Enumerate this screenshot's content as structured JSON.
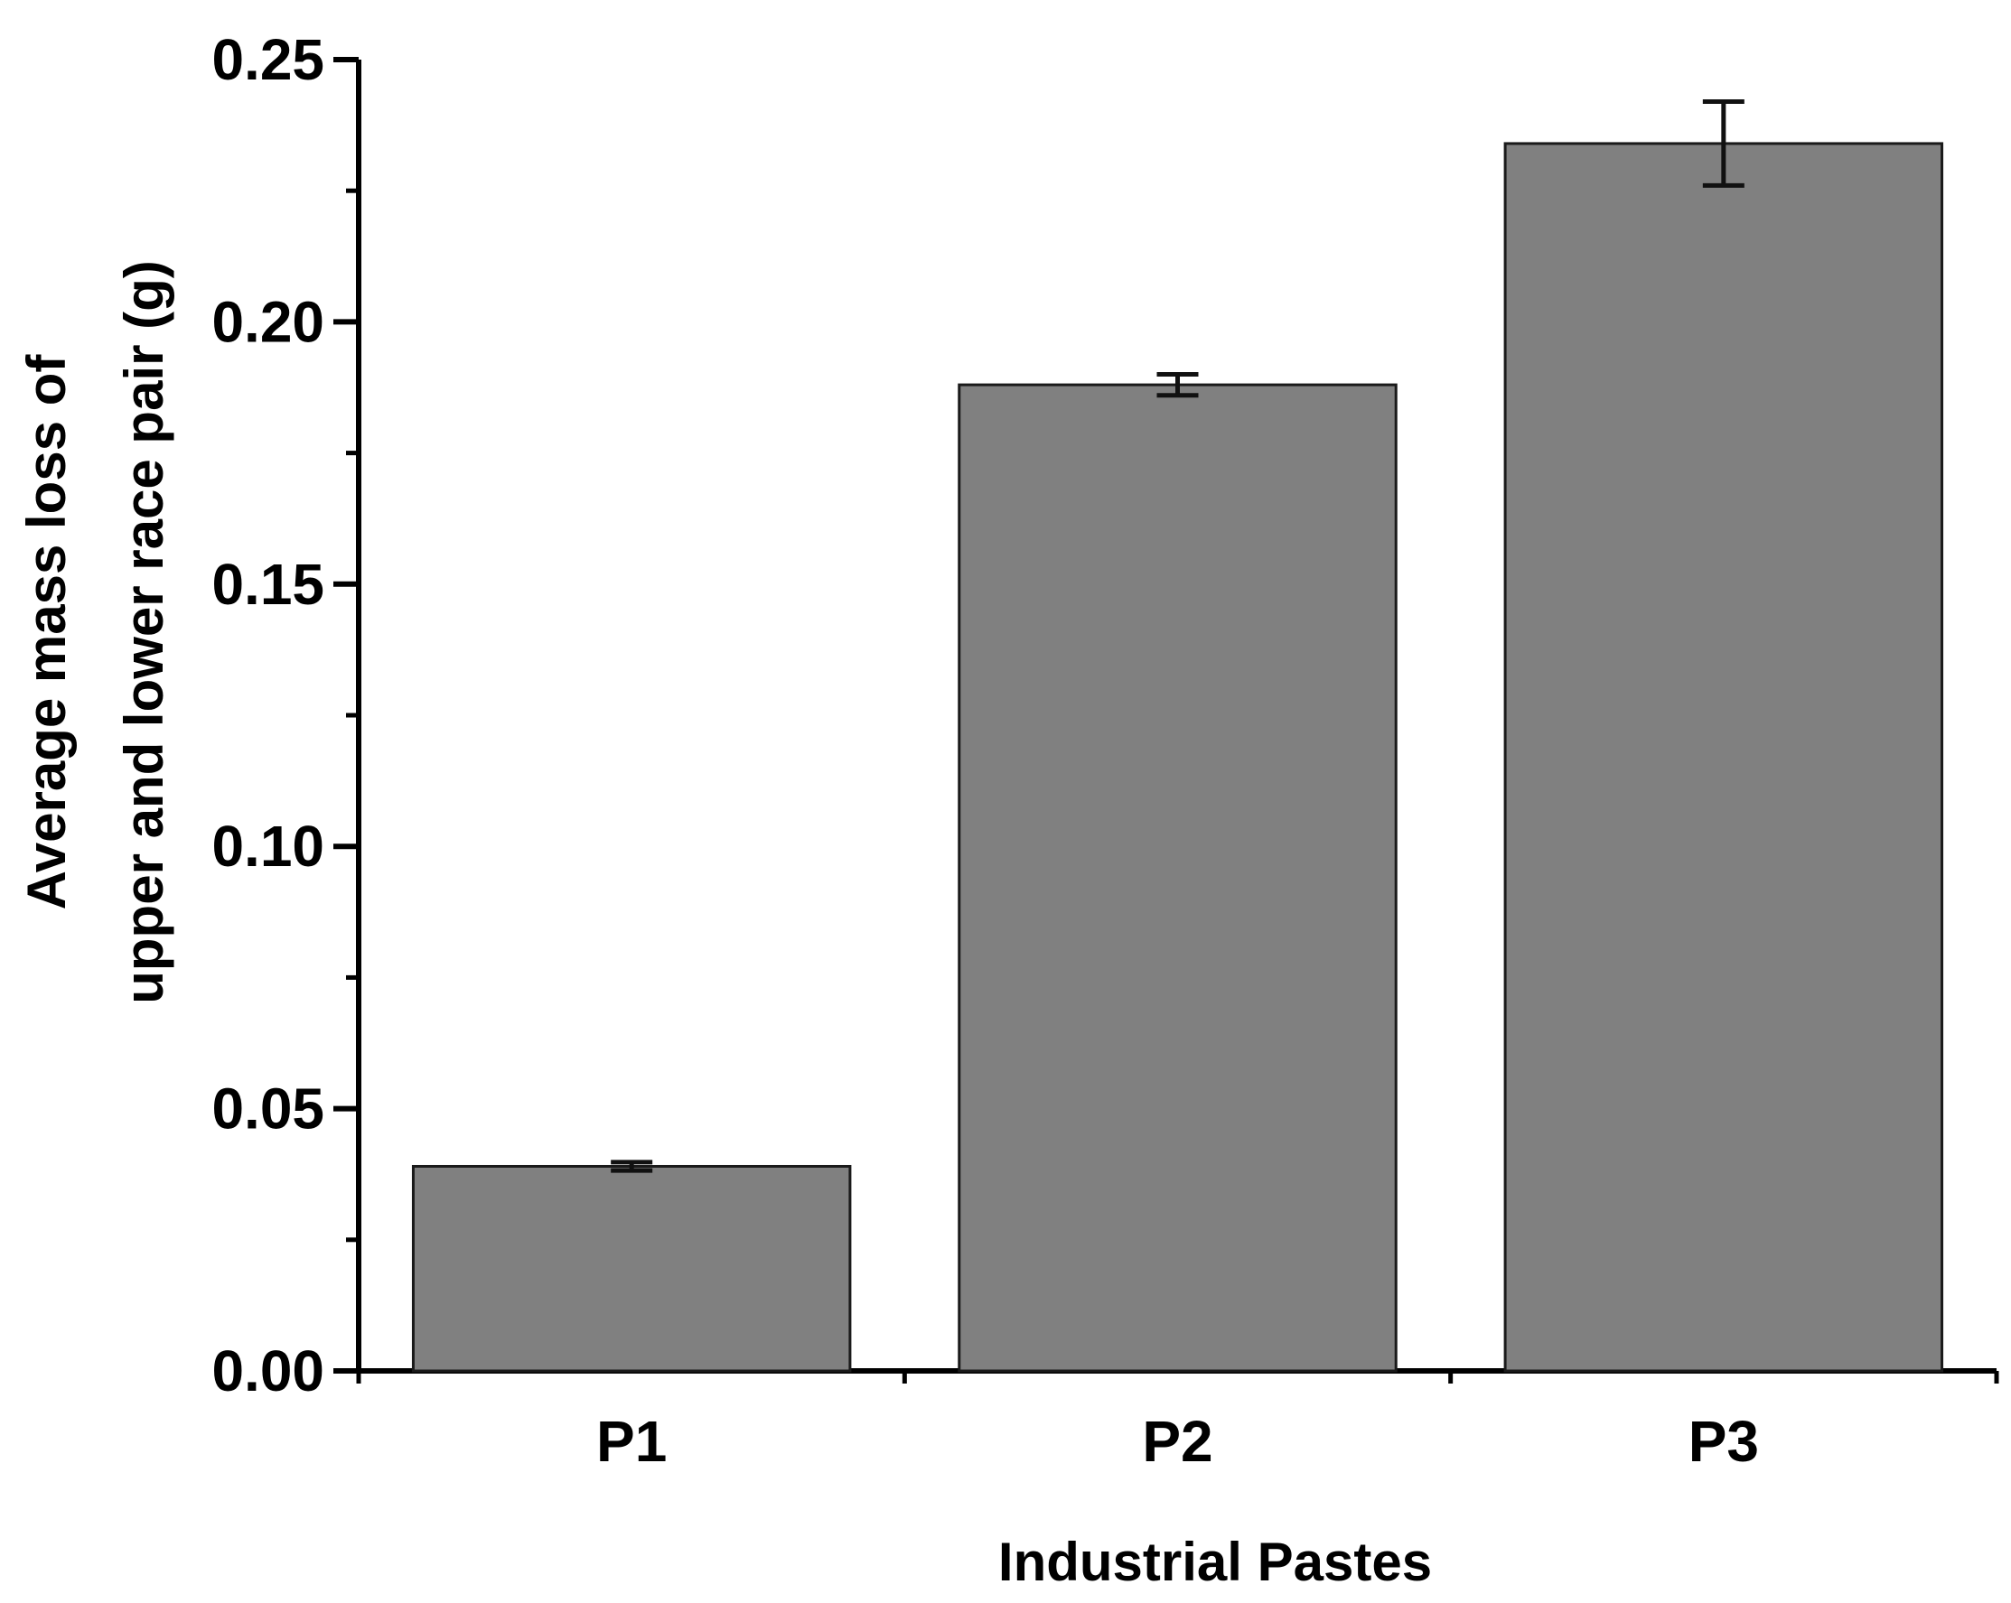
{
  "chart_data": {
    "type": "bar",
    "categories": [
      "P1",
      "P2",
      "P3"
    ],
    "series": [
      {
        "values": [
          0.039,
          0.188,
          0.234
        ],
        "errors": [
          0.0008,
          0.002,
          0.008
        ]
      }
    ],
    "xlabel": "Industrial Pastes",
    "ylabel_lines": [
      "Average mass loss of",
      "upper and lower race pair (g)"
    ],
    "ylim": [
      0,
      0.25
    ],
    "yticks": [
      "0.00",
      "0.05",
      "0.10",
      "0.15",
      "0.20",
      "0.25"
    ],
    "grid": false,
    "bar_color": "#808080",
    "legend": "none"
  }
}
